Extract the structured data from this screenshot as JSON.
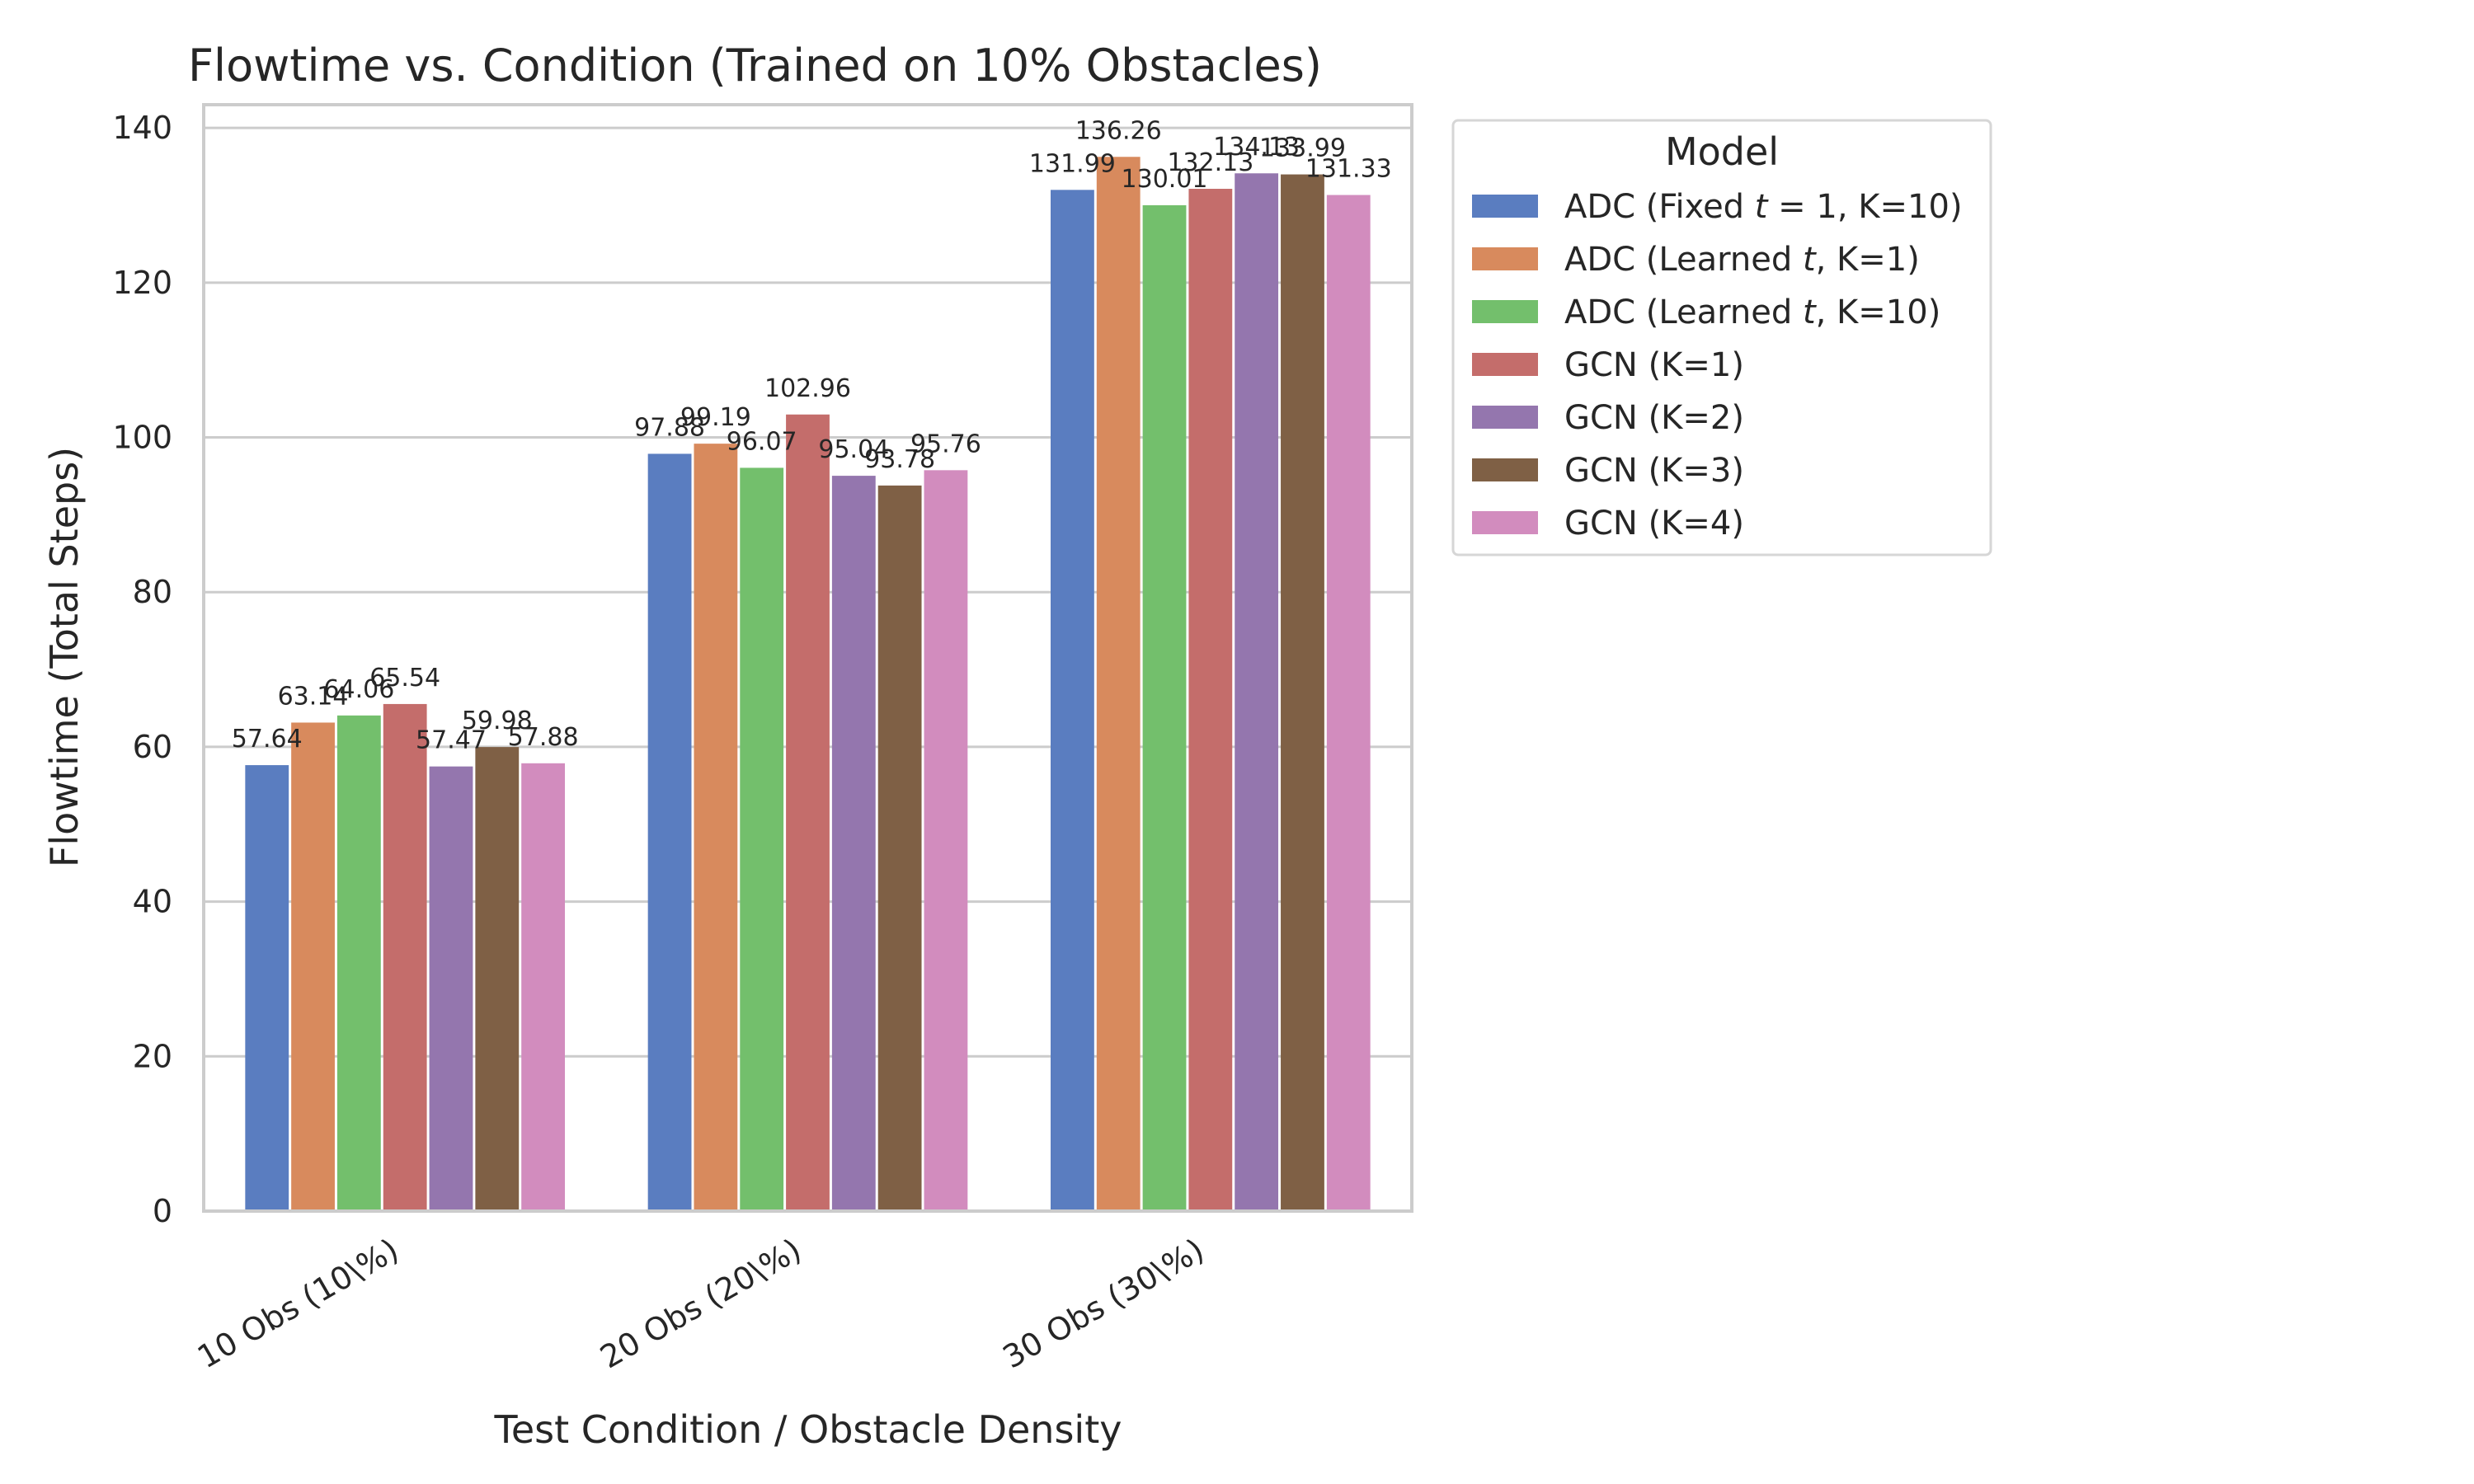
{
  "chart_data": {
    "type": "bar",
    "title": "Flowtime vs. Condition (Trained on 10% Obstacles)",
    "xlabel": "Test Condition / Obstacle Density",
    "ylabel": "Flowtime (Total Steps)",
    "ylim": [
      0,
      143
    ],
    "yticks": [
      0,
      20,
      40,
      60,
      80,
      100,
      120,
      140
    ],
    "grid": true,
    "legend_title": "Model",
    "legend_placement": "outside-upper-right",
    "categories": [
      "10 Obs (10\\%)",
      "20 Obs (20\\%)",
      "30 Obs (30\\%)"
    ],
    "series": [
      {
        "name": "ADC (Fixed t = 1, K=10)",
        "legend_parts": [
          "ADC (Fixed ",
          "t",
          " = 1, K=10)"
        ],
        "color": "#5a7dc0",
        "values": [
          57.64,
          97.88,
          131.99
        ],
        "labels": [
          "57.64",
          "97.88",
          "131.99"
        ]
      },
      {
        "name": "ADC (Learned t, K=1)",
        "legend_parts": [
          "ADC (Learned ",
          "t",
          ", K=1)"
        ],
        "color": "#d88a5d",
        "values": [
          63.14,
          99.19,
          136.26
        ],
        "labels": [
          "63.14",
          "99.19",
          "136.26"
        ]
      },
      {
        "name": "ADC (Learned t, K=10)",
        "legend_parts": [
          "ADC (Learned ",
          "t",
          ", K=10)"
        ],
        "color": "#73bf6c",
        "values": [
          64.06,
          96.07,
          130.01
        ],
        "labels": [
          "64.06",
          "96.07",
          "130.01"
        ]
      },
      {
        "name": "GCN (K=1)",
        "legend_parts": [
          "GCN (K=1)",
          "",
          ""
        ],
        "color": "#c46d6b",
        "values": [
          65.54,
          102.96,
          132.13
        ],
        "labels": [
          "65.54",
          "102.96",
          "132.13"
        ]
      },
      {
        "name": "GCN (K=2)",
        "legend_parts": [
          "GCN (K=2)",
          "",
          ""
        ],
        "color": "#9476ae",
        "values": [
          57.47,
          95.04,
          134.13
        ],
        "labels": [
          "57.47",
          "95.04",
          "134.13"
        ]
      },
      {
        "name": "GCN (K=3)",
        "legend_parts": [
          "GCN (K=3)",
          "",
          ""
        ],
        "color": "#7f6045",
        "values": [
          59.98,
          93.78,
          133.99
        ],
        "labels": [
          "59.98",
          "93.78",
          "133.99"
        ]
      },
      {
        "name": "GCN (K=4)",
        "legend_parts": [
          "GCN (K=4)",
          "",
          ""
        ],
        "color": "#d28cbe",
        "values": [
          57.88,
          95.76,
          131.33
        ],
        "labels": [
          "57.88",
          "95.76",
          "131.33"
        ]
      }
    ]
  }
}
